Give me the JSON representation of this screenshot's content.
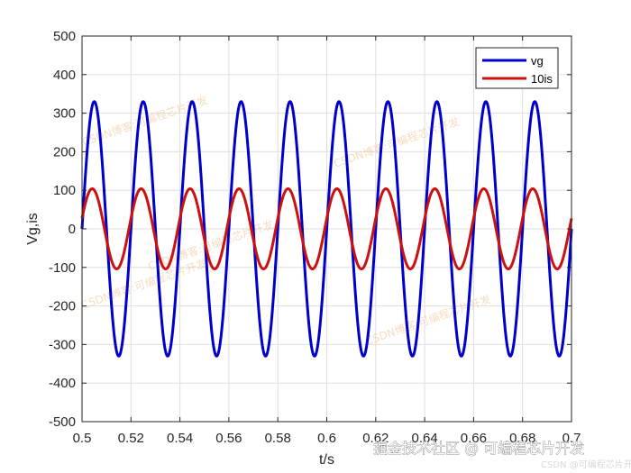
{
  "chart_data": {
    "type": "line",
    "title": "",
    "xlabel": "t/s",
    "ylabel": "Vg,is",
    "xlim": [
      0.5,
      0.7
    ],
    "ylim": [
      -500,
      500
    ],
    "xticks": [
      0.5,
      0.52,
      0.54,
      0.56,
      0.58,
      0.6,
      0.62,
      0.64,
      0.66,
      0.68,
      0.7
    ],
    "xtick_labels": [
      "0.5",
      "0.52",
      "0.54",
      "0.56",
      "0.58",
      "0.6",
      "0.62",
      "0.64",
      "0.66",
      "0.68",
      "0.7"
    ],
    "yticks": [
      -500,
      -400,
      -300,
      -200,
      -100,
      0,
      100,
      200,
      300,
      400,
      500
    ],
    "ytick_labels": [
      "-500",
      "-400",
      "-300",
      "-200",
      "-100",
      "0",
      "100",
      "200",
      "300",
      "400",
      "500"
    ],
    "grid": true,
    "legend_position": "top-right",
    "series": [
      {
        "name": "vg",
        "color": "#0000cc",
        "amplitude": 330,
        "frequency_hz": 50,
        "phase_deg": 0
      },
      {
        "name": "10is",
        "color": "#cc1111",
        "amplitude": 104,
        "frequency_hz": 50,
        "phase_deg": 15
      }
    ]
  },
  "watermark": {
    "marks": [
      "CSDN博客:可编程芯片开发",
      "CSDN博客:可编程芯片开发",
      "CSDN博客:可编程芯片开发",
      "CSDN博客:可编程芯片开发",
      "CSDN博客:可编程芯片开发"
    ]
  },
  "footer": {
    "main": "掘金技术社区 @ 可编程芯片开发",
    "small": "CSDN @可编程芯片开发"
  },
  "colors": {
    "axis": "#262626",
    "grid": "#dfdfdf",
    "background": "#ffffff"
  }
}
